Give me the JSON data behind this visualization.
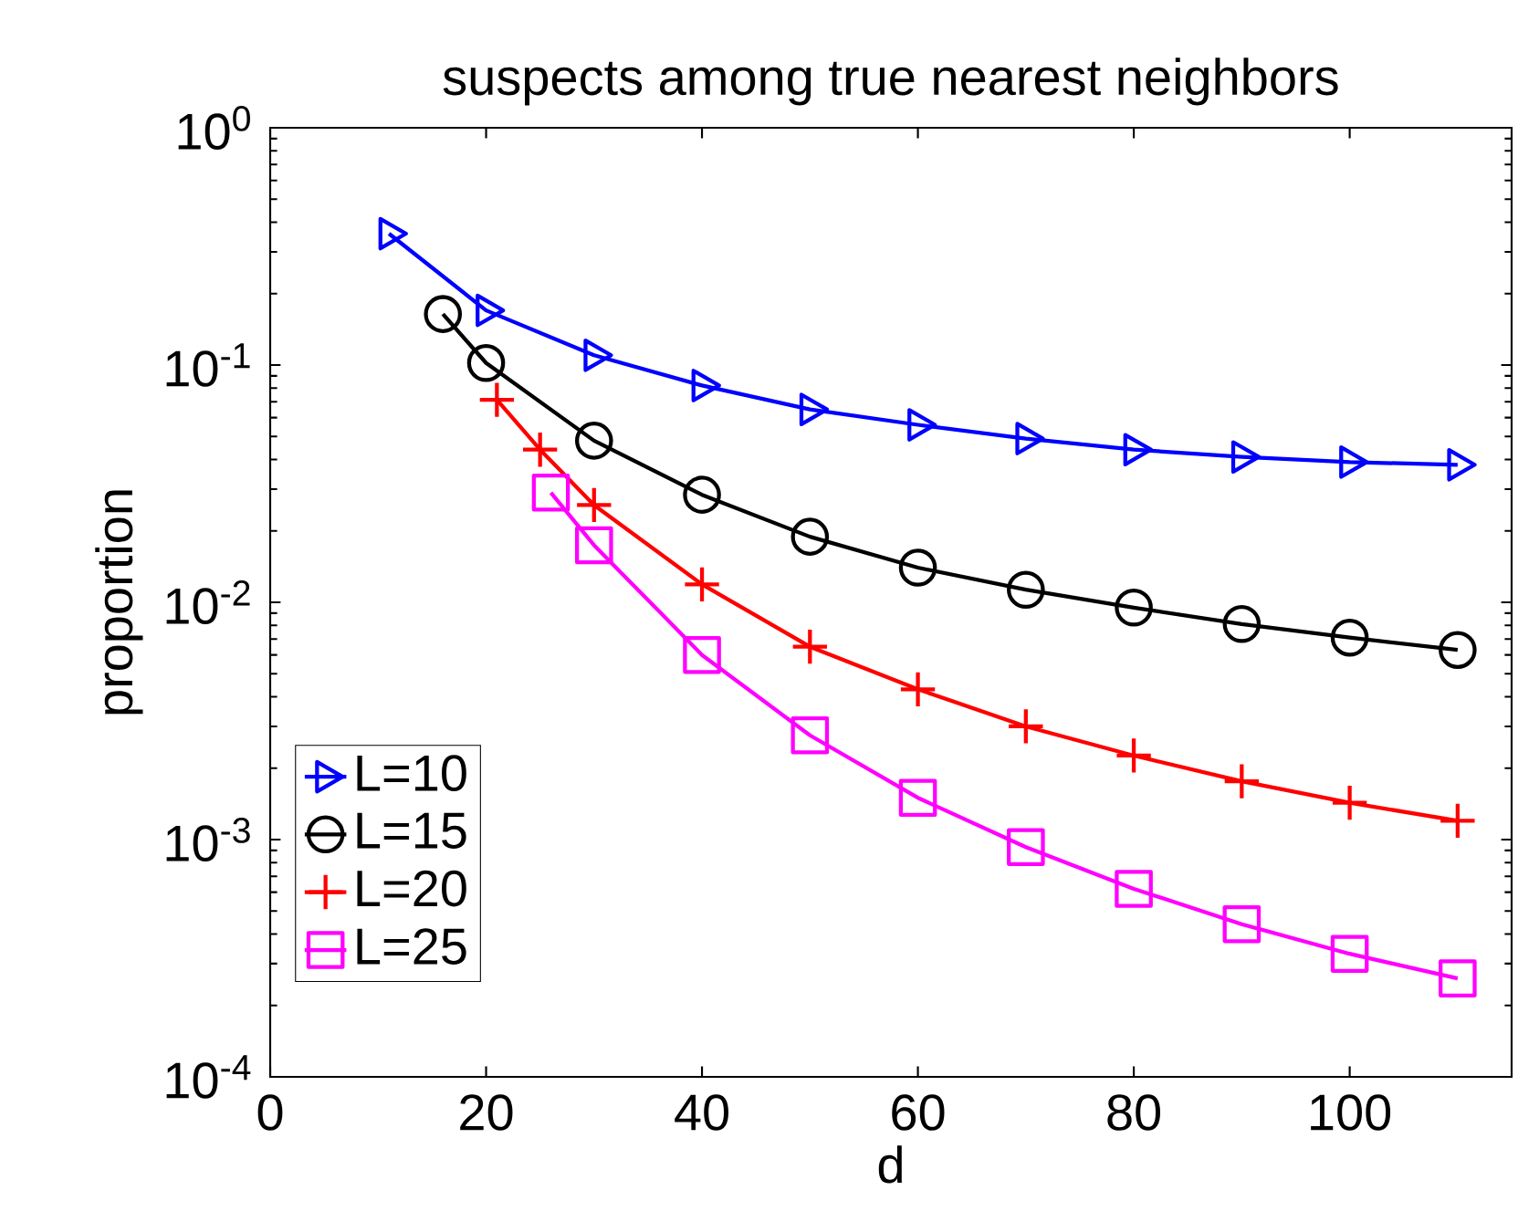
{
  "chart_data": {
    "type": "line",
    "title": "suspects among true nearest neighbors",
    "xlabel": "d",
    "ylabel": "proportion",
    "log": "y",
    "grid": false,
    "legend": "bottom left",
    "xlim": [
      0,
      115
    ],
    "xticks": [
      0,
      20,
      40,
      60,
      80,
      100
    ],
    "ylim": [
      0.0001,
      1
    ],
    "yticks": [
      {
        "value": 0.0001,
        "label": "10$^{-4}$"
      },
      {
        "value": 0.001,
        "label": "10$^{-3}$"
      },
      {
        "value": 0.01,
        "label": "10$^{-2}$"
      },
      {
        "value": 0.1,
        "label": "10$^{-1}$"
      },
      {
        "value": 1,
        "label": "10$^{0}$"
      }
    ],
    "series": [
      {
        "name": "L=10",
        "color": "#0000ff",
        "marker": "triangle",
        "x": [
          11,
          20,
          30,
          40,
          50,
          60,
          70,
          80,
          90,
          100,
          110
        ],
        "values": [
          0.358,
          0.17,
          0.11,
          0.082,
          0.065,
          0.056,
          0.049,
          0.044,
          0.041,
          0.039,
          0.038
        ]
      },
      {
        "name": "L=15",
        "color": "#000000",
        "marker": "circle",
        "x": [
          16,
          20,
          30,
          40,
          50,
          60,
          70,
          80,
          90,
          100,
          110
        ],
        "values": [
          0.164,
          0.102,
          0.048,
          0.0284,
          0.0189,
          0.014,
          0.0113,
          0.0095,
          0.0081,
          0.0071,
          0.0063
        ]
      },
      {
        "name": "L=20",
        "color": "#ff0000",
        "marker": "cross",
        "x": [
          21,
          25,
          30,
          40,
          50,
          60,
          70,
          80,
          90,
          100,
          110
        ],
        "values": [
          0.0714,
          0.044,
          0.0257,
          0.0119,
          0.0065,
          0.0043,
          0.003,
          0.00226,
          0.00176,
          0.00143,
          0.0012
        ]
      },
      {
        "name": "L=25",
        "color": "#ff00ff",
        "marker": "square",
        "x": [
          26,
          30,
          40,
          50,
          60,
          70,
          80,
          90,
          100,
          110
        ],
        "values": [
          0.029,
          0.0174,
          0.006,
          0.00275,
          0.0015,
          0.00093,
          0.00062,
          0.00044,
          0.00033,
          0.00026
        ]
      }
    ]
  }
}
